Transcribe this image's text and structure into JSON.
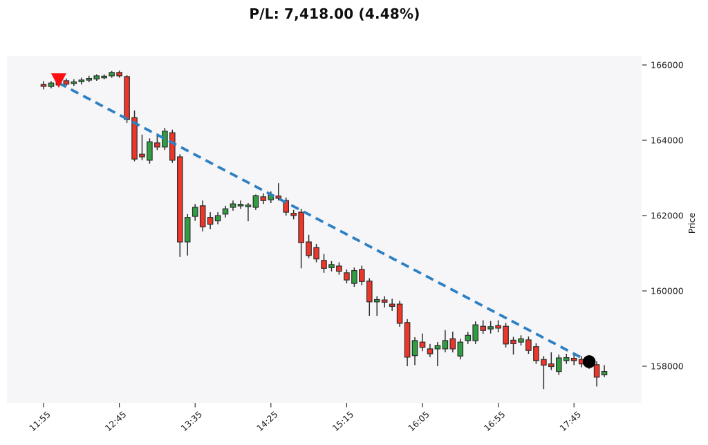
{
  "title": "P/L: 7,418.00 (4.48%)",
  "pl": {
    "value": "7,418.00",
    "percent": "4.48%"
  },
  "colors": {
    "up": "#2f9e41",
    "down": "#ee3529",
    "edge": "#2d2d2d",
    "trendline": "#2e80c3",
    "entry_marker": "#fb0f0f",
    "exit_marker": "#000000",
    "plot_bg": "#f6f6f8",
    "fig_bg": "#ffffff",
    "text": "#1c1c1c"
  },
  "chart_data": {
    "type": "candlestick",
    "title": "P/L: 7,418.00 (4.48%)",
    "xlabel": "",
    "ylabel": "Price",
    "y_ticks": [
      166000,
      164000,
      162000,
      160000,
      158000
    ],
    "ylim": [
      157000,
      166250
    ],
    "x_ticklabels": [
      "11:55",
      "12:45",
      "13:35",
      "14:25",
      "15:15",
      "16:05",
      "16:55",
      "17:45"
    ],
    "x_tick_step": 10,
    "interval_minutes": 5,
    "grid": false,
    "legend": "none",
    "candle_columns": [
      "time",
      "open",
      "high",
      "low",
      "close"
    ],
    "candles": [
      [
        "11:55",
        165480,
        165570,
        165350,
        165430
      ],
      [
        "12:00",
        165430,
        165570,
        165380,
        165520
      ],
      [
        "12:05",
        165540,
        165600,
        165420,
        165470
      ],
      [
        "12:10",
        165580,
        165640,
        165440,
        165490
      ],
      [
        "12:15",
        165520,
        165620,
        165440,
        165550
      ],
      [
        "12:20",
        165560,
        165660,
        165480,
        165600
      ],
      [
        "12:25",
        165610,
        165710,
        165540,
        165640
      ],
      [
        "12:30",
        165630,
        165750,
        165580,
        165710
      ],
      [
        "12:35",
        165680,
        165750,
        165620,
        165700
      ],
      [
        "12:40",
        165710,
        165840,
        165660,
        165800
      ],
      [
        "12:45",
        165800,
        165850,
        165660,
        165710
      ],
      [
        "12:50",
        165690,
        165730,
        164460,
        164550
      ],
      [
        "12:55",
        164600,
        164790,
        163440,
        163500
      ],
      [
        "13:00",
        163630,
        164150,
        163470,
        163560
      ],
      [
        "13:05",
        163470,
        164050,
        163380,
        163960
      ],
      [
        "13:10",
        163930,
        164180,
        163740,
        163820
      ],
      [
        "13:15",
        163820,
        164330,
        163740,
        164240
      ],
      [
        "13:20",
        164200,
        164280,
        163400,
        163470
      ],
      [
        "13:25",
        163560,
        163630,
        160900,
        161300
      ],
      [
        "13:30",
        161300,
        162040,
        160940,
        161950
      ],
      [
        "13:35",
        161980,
        162310,
        161860,
        162220
      ],
      [
        "13:40",
        162260,
        162400,
        161580,
        161700
      ],
      [
        "13:45",
        161950,
        162090,
        161640,
        161770
      ],
      [
        "13:50",
        161860,
        162090,
        161770,
        162000
      ],
      [
        "13:55",
        162040,
        162260,
        161950,
        162180
      ],
      [
        "14:00",
        162220,
        162400,
        162130,
        162310
      ],
      [
        "14:05",
        162260,
        162400,
        162180,
        162300
      ],
      [
        "14:10",
        162260,
        162330,
        161850,
        162280
      ],
      [
        "14:15",
        162220,
        162560,
        162150,
        162530
      ],
      [
        "14:20",
        162500,
        162590,
        162310,
        162400
      ],
      [
        "14:25",
        162420,
        162640,
        162330,
        162550
      ],
      [
        "14:30",
        162520,
        162860,
        162400,
        162460
      ],
      [
        "14:35",
        162400,
        162480,
        162000,
        162090
      ],
      [
        "14:40",
        162060,
        162150,
        161900,
        162000
      ],
      [
        "14:45",
        162090,
        162180,
        160600,
        161280
      ],
      [
        "14:50",
        161300,
        161490,
        160870,
        160940
      ],
      [
        "14:55",
        161150,
        161250,
        160760,
        160850
      ],
      [
        "15:00",
        160810,
        160980,
        160480,
        160600
      ],
      [
        "15:05",
        160620,
        160790,
        160520,
        160700
      ],
      [
        "15:10",
        160660,
        160760,
        160430,
        160520
      ],
      [
        "15:15",
        160480,
        160570,
        160200,
        160290
      ],
      [
        "15:20",
        160200,
        160620,
        160110,
        160540
      ],
      [
        "15:25",
        160570,
        160670,
        160150,
        160250
      ],
      [
        "15:30",
        160260,
        160340,
        159340,
        159710
      ],
      [
        "15:35",
        159710,
        159860,
        159340,
        159770
      ],
      [
        "15:40",
        159760,
        159860,
        159560,
        159700
      ],
      [
        "15:45",
        159650,
        159790,
        159470,
        159590
      ],
      [
        "15:50",
        159650,
        159740,
        159050,
        159140
      ],
      [
        "15:55",
        159160,
        159250,
        158000,
        158240
      ],
      [
        "16:00",
        158280,
        158770,
        158030,
        158680
      ],
      [
        "16:05",
        158640,
        158870,
        158400,
        158500
      ],
      [
        "16:10",
        158460,
        158590,
        158240,
        158330
      ],
      [
        "16:15",
        158460,
        158640,
        158000,
        158550
      ],
      [
        "16:20",
        158460,
        158960,
        158370,
        158680
      ],
      [
        "16:25",
        158730,
        158920,
        158370,
        158460
      ],
      [
        "16:30",
        158270,
        158730,
        158180,
        158640
      ],
      [
        "16:35",
        158680,
        158910,
        158590,
        158820
      ],
      [
        "16:40",
        158680,
        159190,
        158590,
        159100
      ],
      [
        "16:45",
        159060,
        159220,
        158860,
        158950
      ],
      [
        "16:50",
        158990,
        159200,
        158870,
        159050
      ],
      [
        "16:55",
        159080,
        159220,
        158900,
        159010
      ],
      [
        "17:00",
        159060,
        159150,
        158500,
        158590
      ],
      [
        "17:05",
        158690,
        158780,
        158310,
        158600
      ],
      [
        "17:10",
        158640,
        158820,
        158550,
        158730
      ],
      [
        "17:15",
        158700,
        158790,
        158330,
        158420
      ],
      [
        "17:20",
        158520,
        158610,
        158060,
        158150
      ],
      [
        "17:25",
        158180,
        158270,
        157390,
        158030
      ],
      [
        "17:30",
        158060,
        158370,
        157900,
        157990
      ],
      [
        "17:35",
        157860,
        158310,
        157770,
        158220
      ],
      [
        "17:40",
        158150,
        158330,
        158060,
        158230
      ],
      [
        "17:45",
        158210,
        158310,
        158030,
        158150
      ],
      [
        "17:50",
        158180,
        158270,
        157970,
        158060
      ],
      [
        "17:55",
        158100,
        158200,
        157930,
        158030
      ],
      [
        "18:00",
        158040,
        158130,
        157460,
        157710
      ],
      [
        "18:05",
        157770,
        158030,
        157710,
        157860
      ]
    ],
    "trendline": {
      "style": "dashed",
      "color": "#2e80c3",
      "from": {
        "time": "12:05",
        "price": 165520
      },
      "to": {
        "time": "17:55",
        "price": 158120
      }
    },
    "markers": [
      {
        "name": "entry",
        "shape": "triangle-down",
        "color": "#fb0f0f",
        "time": "12:05",
        "price": 165520
      },
      {
        "name": "exit",
        "shape": "circle",
        "color": "#000000",
        "time": "17:55",
        "price": 158120
      }
    ]
  }
}
